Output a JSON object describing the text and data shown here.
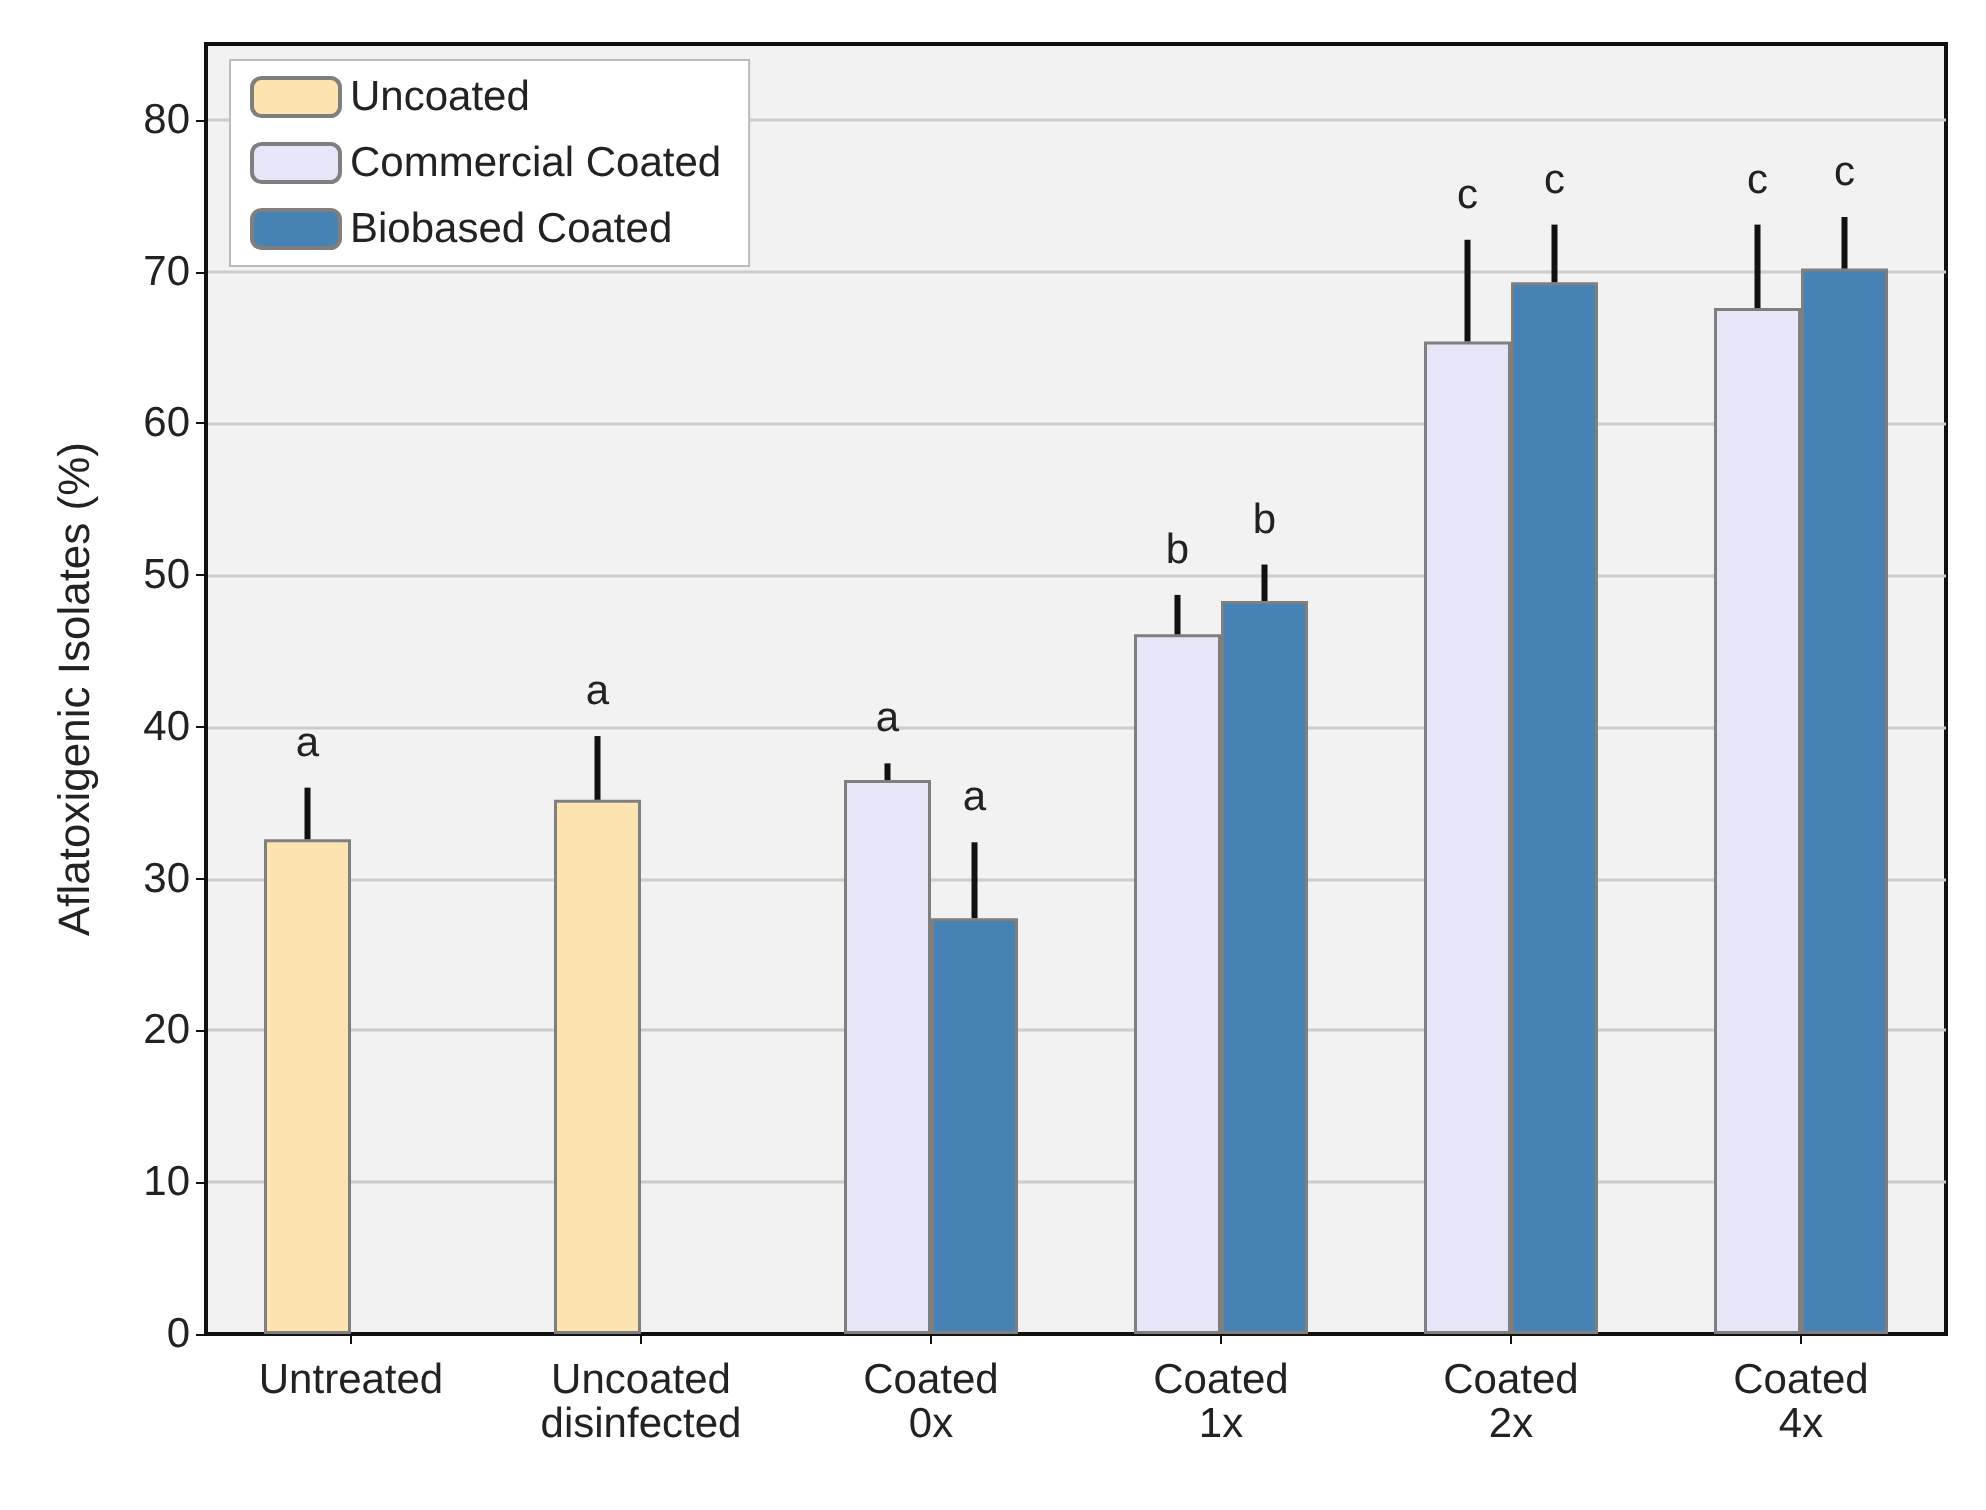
{
  "chart_data": {
    "type": "bar",
    "ylabel": "Aflatoxigenic Isolates (%)",
    "categories": [
      "Untreated",
      "Uncoated\ndisinfected",
      "Coated\n0x",
      "Coated\n1x",
      "Coated\n2x",
      "Coated\n4x"
    ],
    "series": [
      {
        "name": "Uncoated",
        "color": "#fde3b0",
        "values": [
          32.6,
          35.2,
          null,
          null,
          null,
          null
        ],
        "errors": [
          [
            32.6,
            36.0
          ],
          [
            35.2,
            39.4
          ],
          null,
          null,
          null,
          null
        ],
        "value_labels": [
          "a",
          "a",
          null,
          null,
          null,
          null
        ]
      },
      {
        "name": "Commercial Coated",
        "color": "#e6e6f8",
        "values": [
          null,
          null,
          36.5,
          46.1,
          65.4,
          67.6
        ],
        "errors": [
          null,
          null,
          [
            36.5,
            37.6
          ],
          [
            46.1,
            48.7
          ],
          [
            65.4,
            72.1
          ],
          [
            67.6,
            73.1
          ]
        ],
        "value_labels": [
          null,
          null,
          "a",
          "b",
          "c",
          "c"
        ]
      },
      {
        "name": "Biobased Coated",
        "color": "#4682b4",
        "values": [
          null,
          null,
          27.4,
          48.3,
          69.3,
          70.2
        ],
        "errors": [
          null,
          null,
          [
            27.4,
            32.4
          ],
          [
            48.3,
            50.7
          ],
          [
            69.3,
            73.1
          ],
          [
            70.2,
            73.6
          ]
        ],
        "value_labels": [
          null,
          null,
          "a",
          "b",
          "c",
          "c"
        ]
      }
    ],
    "ylim": [
      0,
      85
    ],
    "yticks": [
      0,
      10,
      20,
      30,
      40,
      50,
      60,
      70,
      80
    ],
    "grid": "y",
    "legend": "top left"
  }
}
